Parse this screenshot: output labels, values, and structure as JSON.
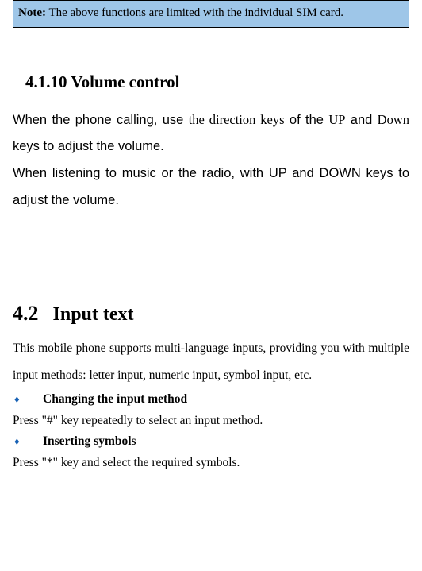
{
  "note": {
    "label": "Note:",
    "text": " The above functions are limited with the individual SIM card."
  },
  "section_4_1_10": {
    "heading": "4.1.10  Volume control",
    "para1_a": "When the phone calling, use ",
    "para1_b": "the direction keys",
    "para1_c": " of the ",
    "para1_d": "UP",
    "para1_e": " and ",
    "para1_f": "Down",
    "para1_g": " keys to adjust the volume.",
    "para2": "When listening to music or the radio, with UP and DOWN keys to adjust the volume."
  },
  "section_4_2": {
    "num": "4.2",
    "title": "Input text",
    "intro": "This mobile phone supports multi-language inputs, providing you with multiple input methods: letter input, numeric input, symbol input, etc.",
    "bullet1": "Changing the input method",
    "bullet1_text": "Press \"#\" key repeatedly to select an input method.",
    "bullet2": "Inserting symbols",
    "bullet2_text": "Press \"*\" key and select the required symbols."
  }
}
